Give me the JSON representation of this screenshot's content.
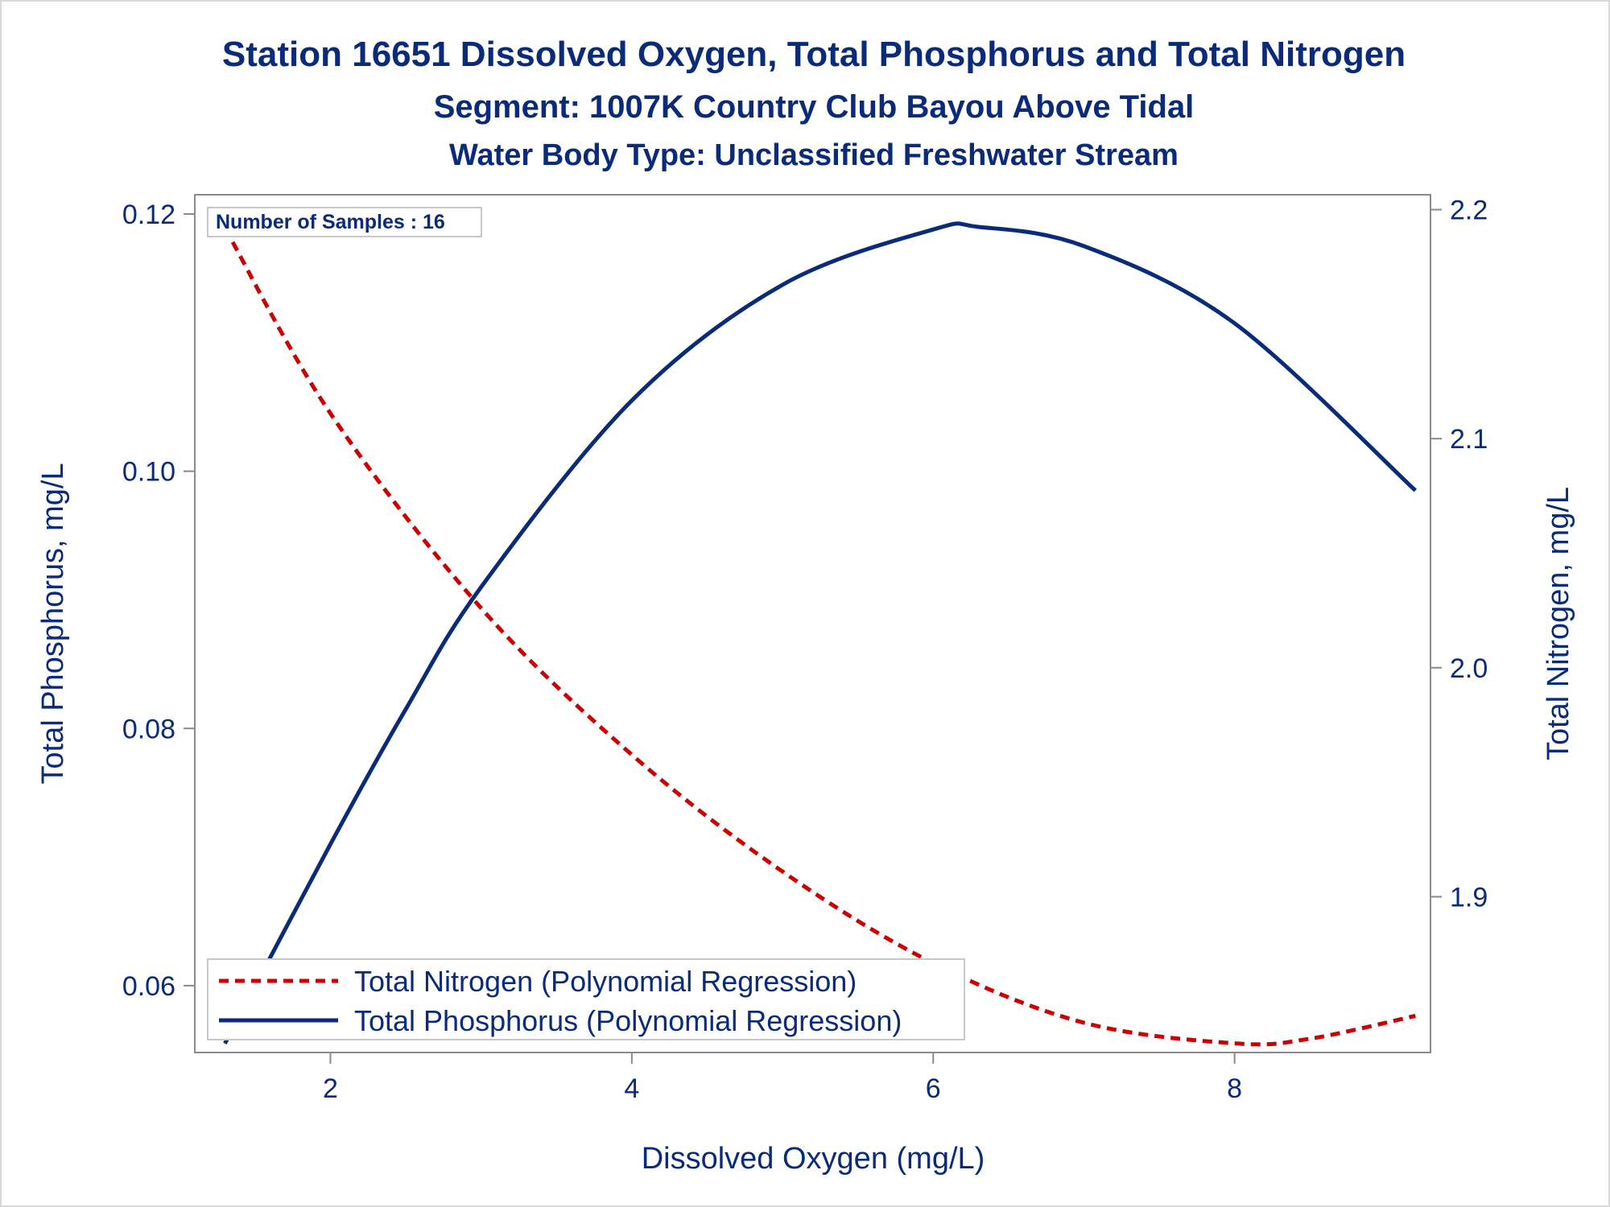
{
  "chart_data": {
    "type": "line",
    "title": "Station 16651  Dissolved Oxygen, Total Phosphorus and Total Nitrogen",
    "subtitle1": "Segment: 1007K  Country Club Bayou Above Tidal",
    "subtitle2": "Water Body Type: Unclassified Freshwater Stream",
    "xlabel": "Dissolved Oxygen (mg/L)",
    "ylabel_left": "Total Phosphorus, mg/L",
    "ylabel_right": "Total Nitrogen, mg/L",
    "xlim": [
      1.1,
      9.3
    ],
    "ylim_left": [
      0.0548,
      0.1215
    ],
    "ylim_right": [
      1.832,
      2.2065
    ],
    "x_ticks": [
      "2",
      "4",
      "6",
      "8"
    ],
    "x_tick_values": [
      2,
      4,
      6,
      8
    ],
    "y_left_ticks": [
      "0.06",
      "0.08",
      "0.10",
      "0.12"
    ],
    "y_left_tick_values": [
      0.06,
      0.08,
      0.1,
      0.12
    ],
    "y_right_ticks": [
      "1.9",
      "2.0",
      "2.1",
      "2.2"
    ],
    "y_right_tick_values": [
      1.9,
      2.0,
      2.1,
      2.2
    ],
    "annotation": "Number of Samples : 16",
    "grid": false,
    "legend_position": "bottom-left",
    "series": [
      {
        "name": "Total Nitrogen (Polynomial Regression)",
        "axis": "right",
        "color": "#cc0000",
        "style": "dashed",
        "x": [
          1.3,
          2.0,
          3.0,
          4.0,
          5.0,
          6.0,
          7.0,
          8.0,
          8.5,
          9.2
        ],
        "values": [
          2.192,
          2.111,
          2.026,
          1.962,
          1.911,
          1.871,
          1.845,
          1.836,
          1.838,
          1.848
        ]
      },
      {
        "name": "Total Phosphorus (Polynomial Regression)",
        "axis": "left",
        "color": "#0a2a7a",
        "style": "solid",
        "x": [
          1.3,
          2.0,
          2.5,
          3.0,
          4.0,
          5.0,
          6.0,
          6.3,
          7.0,
          8.0,
          9.2
        ],
        "values": [
          0.0555,
          0.071,
          0.0815,
          0.091,
          0.1055,
          0.1145,
          0.1188,
          0.119,
          0.1175,
          0.1115,
          0.0985
        ]
      }
    ]
  }
}
